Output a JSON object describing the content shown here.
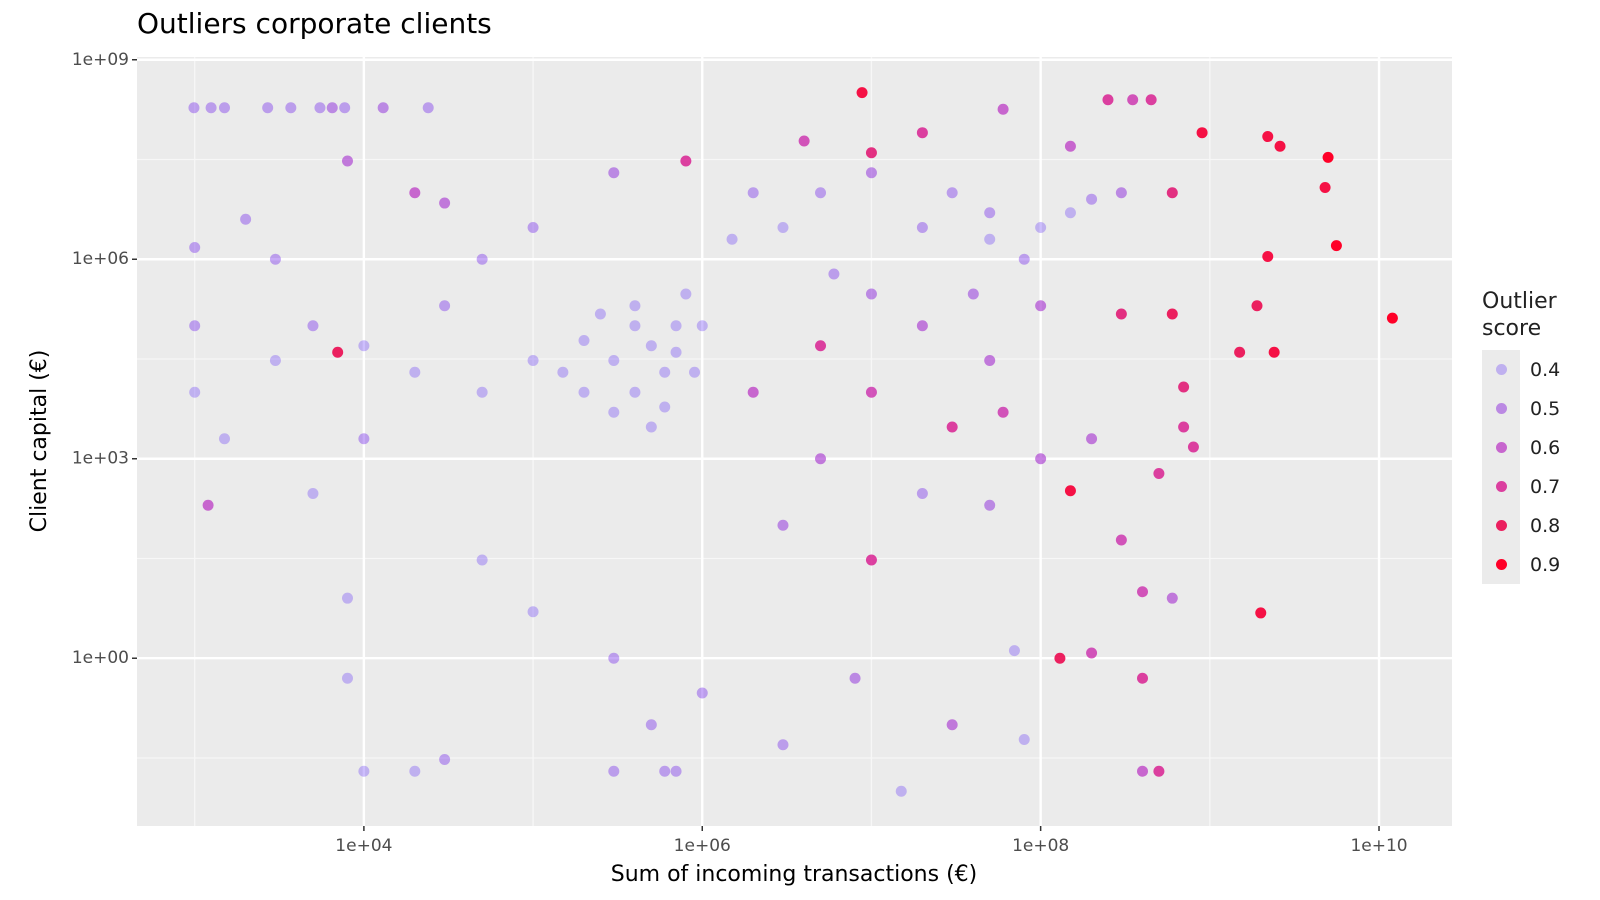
{
  "chart_data": {
    "type": "scatter",
    "title": "Outliers corporate clients",
    "x_label": "Sum of incoming transactions (€)",
    "y_label": "Client capital (€)",
    "x_scale": "log",
    "y_scale": "log",
    "grid": true,
    "xlim": [
      456,
      27000000000
    ],
    "ylim": [
      0.003,
      1100000000
    ],
    "xticks": [
      {
        "value": 10000,
        "label": "1e+04"
      },
      {
        "value": 1000000,
        "label": "1e+06"
      },
      {
        "value": 100000000,
        "label": "1e+08"
      },
      {
        "value": 10000000000,
        "label": "1e+10"
      }
    ],
    "yticks": [
      {
        "value": 1,
        "label": "1e+00"
      },
      {
        "value": 1000,
        "label": "1e+03"
      },
      {
        "value": 1000000,
        "label": "1e+06"
      },
      {
        "value": 1000000000,
        "label": "1e+09"
      }
    ],
    "legend": {
      "title": "Outlier score",
      "position": "right",
      "values": [
        0.4,
        0.5,
        0.6,
        0.7,
        0.8,
        0.9
      ],
      "colors": [
        "rgba(90,40,250,0.3)",
        "rgba(140,40,220,0.5)",
        "rgba(180,30,190,0.65)",
        "rgba(215,20,140,0.8)",
        "rgba(235,10,80,0.9)",
        "rgba(255,0,40,1)"
      ]
    },
    "x": [
      990,
      1250,
      1500,
      2700,
      3700,
      5500,
      6500,
      7700,
      13000,
      24000,
      8800000,
      12000000000,
      5600000000,
      5000000000,
      4800000000,
      150000000,
      2000000000,
      130000000,
      7000,
      2400000000,
      1500000000,
      2200000000,
      2600000000,
      2200000000,
      900000000,
      1900000000,
      600000000,
      300000000,
      700000000,
      500000000,
      250000000,
      350000000,
      450000000,
      60000000,
      20000000,
      10000000,
      4000000,
      800000,
      150000000,
      600000000,
      30000000,
      50000000,
      100000000,
      150000000,
      200000000,
      300000000,
      50000000,
      80000000,
      20000000,
      10000000,
      5000000,
      3000000,
      2000000,
      1500000,
      6000000,
      10000000,
      20000000,
      40000000,
      100000000,
      50000000,
      300000,
      500000,
      700000,
      200000,
      400000,
      600000,
      100000,
      800000,
      400000,
      200000,
      500000,
      300000,
      1000000,
      150000,
      600000,
      400000,
      700000,
      250000,
      900000,
      50000,
      1000,
      1000,
      1500,
      3000,
      5000,
      10000,
      20000,
      30000,
      10000,
      5000,
      2000,
      3000,
      8000,
      20000,
      30000,
      50000,
      100000,
      300000,
      1000,
      1200,
      50000,
      100000,
      300000,
      500000,
      600000,
      10000,
      20000,
      300000,
      700000,
      1000000,
      3000000,
      8000000,
      15000000,
      30000000,
      70000000,
      80000000,
      400000000,
      500000000,
      400000000,
      200000000,
      3000000,
      5000000,
      10000000,
      20000000,
      50000000,
      100000000,
      300000000,
      400000000,
      200000000,
      60000000,
      2000000,
      5000000,
      10000000,
      30000000,
      700000000,
      800000000,
      600000000,
      30000,
      8000,
      8000
    ],
    "y": [
      190000000,
      190000000,
      190000000,
      190000000,
      190000000,
      190000000,
      190000000,
      190000000,
      190000000,
      190000000,
      320000000,
      130000,
      1600000,
      34000000,
      12000000,
      330,
      4.8,
      1,
      40000,
      40000,
      40000,
      1100000,
      50000000,
      70000000,
      80000000,
      200000,
      150000,
      150000,
      12000,
      600,
      250000000,
      250000000,
      250000000,
      180000000,
      80000000,
      40000000,
      60000000,
      30000000,
      50000000,
      10000000,
      10000000,
      5000000,
      3000000,
      5000000,
      8000000,
      10000000,
      2000000,
      1000000,
      3000000,
      20000000,
      10000000,
      3000000,
      10000000,
      2000000,
      600000,
      300000,
      100000,
      300000,
      200000,
      30000,
      30000,
      50000,
      100000,
      10000,
      10000,
      20000,
      30000,
      300000,
      200000,
      60000,
      3000,
      5000,
      100000,
      20000,
      6000,
      100000,
      40000,
      150000,
      20000,
      10000,
      10000,
      100000,
      2000,
      30000,
      100000,
      50000,
      20000,
      200000,
      2000,
      300,
      4000000,
      1000000,
      30000000,
      10000000,
      7000000,
      1000000,
      3000000,
      20000000,
      1500000,
      200,
      30,
      5,
      1,
      0.1,
      0.02,
      0.02,
      0.02,
      0.02,
      0.02,
      0.3,
      0.05,
      0.5,
      0.01,
      0.1,
      1.3,
      0.06,
      0.02,
      0.02,
      0.5,
      1.2,
      100,
      1000,
      30,
      300,
      200,
      1000,
      60,
      10,
      2000,
      5000,
      10000,
      50000,
      10000,
      3000,
      3000,
      1500,
      8,
      0.03,
      0.5,
      8
    ],
    "score": [
      0.45,
      0.45,
      0.45,
      0.45,
      0.45,
      0.45,
      0.5,
      0.45,
      0.5,
      0.45,
      0.85,
      0.9,
      0.9,
      0.9,
      0.85,
      0.85,
      0.85,
      0.8,
      0.8,
      0.85,
      0.8,
      0.85,
      0.85,
      0.85,
      0.85,
      0.8,
      0.8,
      0.75,
      0.75,
      0.7,
      0.7,
      0.65,
      0.7,
      0.6,
      0.7,
      0.75,
      0.65,
      0.7,
      0.6,
      0.75,
      0.45,
      0.45,
      0.4,
      0.4,
      0.45,
      0.5,
      0.4,
      0.45,
      0.45,
      0.5,
      0.45,
      0.4,
      0.45,
      0.4,
      0.45,
      0.5,
      0.55,
      0.5,
      0.55,
      0.55,
      0.4,
      0.4,
      0.4,
      0.4,
      0.4,
      0.4,
      0.4,
      0.4,
      0.4,
      0.4,
      0.4,
      0.4,
      0.4,
      0.4,
      0.4,
      0.4,
      0.4,
      0.4,
      0.4,
      0.4,
      0.4,
      0.45,
      0.4,
      0.4,
      0.45,
      0.4,
      0.4,
      0.45,
      0.45,
      0.4,
      0.45,
      0.45,
      0.55,
      0.6,
      0.55,
      0.45,
      0.45,
      0.5,
      0.45,
      0.6,
      0.4,
      0.4,
      0.45,
      0.45,
      0.45,
      0.4,
      0.4,
      0.45,
      0.45,
      0.45,
      0.45,
      0.5,
      0.4,
      0.55,
      0.4,
      0.4,
      0.6,
      0.7,
      0.7,
      0.65,
      0.5,
      0.55,
      0.7,
      0.45,
      0.5,
      0.55,
      0.65,
      0.65,
      0.55,
      0.65,
      0.6,
      0.7,
      0.65,
      0.7,
      0.7,
      0.7,
      0.55,
      0.45,
      0.4,
      0.4
    ]
  }
}
